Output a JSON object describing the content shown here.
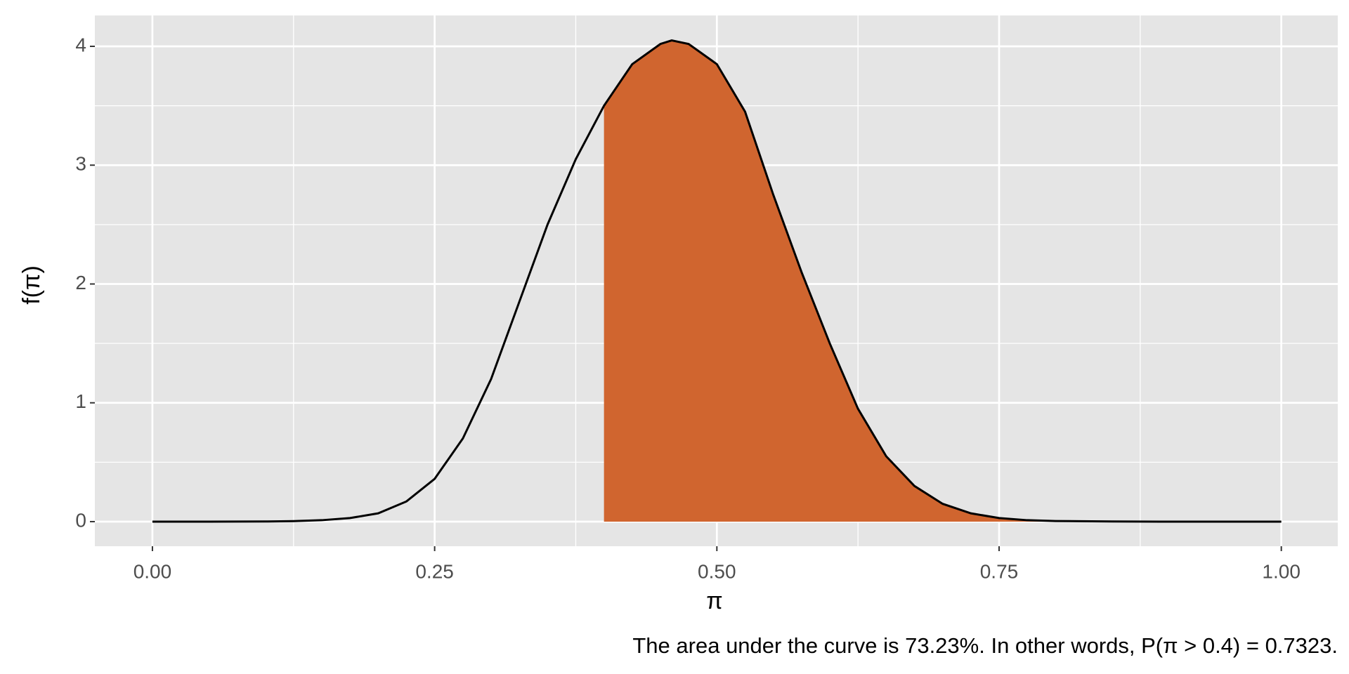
{
  "chart_data": {
    "type": "area",
    "x_label": "π",
    "y_label": "f(π)",
    "caption": "The area under the curve is 73.23%. In other words, P(π > 0.4) = 0.7323.",
    "x": [
      0,
      0.05,
      0.1,
      0.125,
      0.15,
      0.175,
      0.2,
      0.225,
      0.25,
      0.275,
      0.3,
      0.325,
      0.35,
      0.375,
      0.4,
      0.425,
      0.45,
      0.46,
      0.475,
      0.5,
      0.525,
      0.55,
      0.575,
      0.6,
      0.625,
      0.65,
      0.675,
      0.7,
      0.725,
      0.75,
      0.775,
      0.8,
      0.85,
      0.9,
      0.95,
      1
    ],
    "values": [
      0,
      0,
      0.001,
      0.004,
      0.012,
      0.03,
      0.07,
      0.17,
      0.36,
      0.7,
      1.2,
      1.85,
      2.5,
      3.05,
      3.5,
      3.85,
      4.02,
      4.05,
      4.02,
      3.85,
      3.45,
      2.75,
      2.1,
      1.5,
      0.95,
      0.55,
      0.3,
      0.15,
      0.07,
      0.03,
      0.012,
      0.005,
      0.001,
      0,
      0,
      0
    ],
    "shade_from": 0.4,
    "shade_color": "#d0652f",
    "line_color": "#000000",
    "xlim": [
      -0.051,
      1.05
    ],
    "ylim": [
      -0.207,
      4.26
    ],
    "xticks": [
      {
        "value": 0,
        "label": "0.00"
      },
      0.25,
      {
        "value": 0.5,
        "label": "0.50"
      },
      0.75,
      {
        "value": 1,
        "label": "1.00"
      }
    ],
    "yticks": [
      0,
      1,
      2,
      3,
      4
    ],
    "minor_xticks": [
      0.125,
      0.375,
      0.625,
      0.875
    ],
    "minor_yticks": [
      0.5,
      1.5,
      2.5,
      3.5
    ],
    "grid": true,
    "panel_color": "#e5e5e5"
  }
}
